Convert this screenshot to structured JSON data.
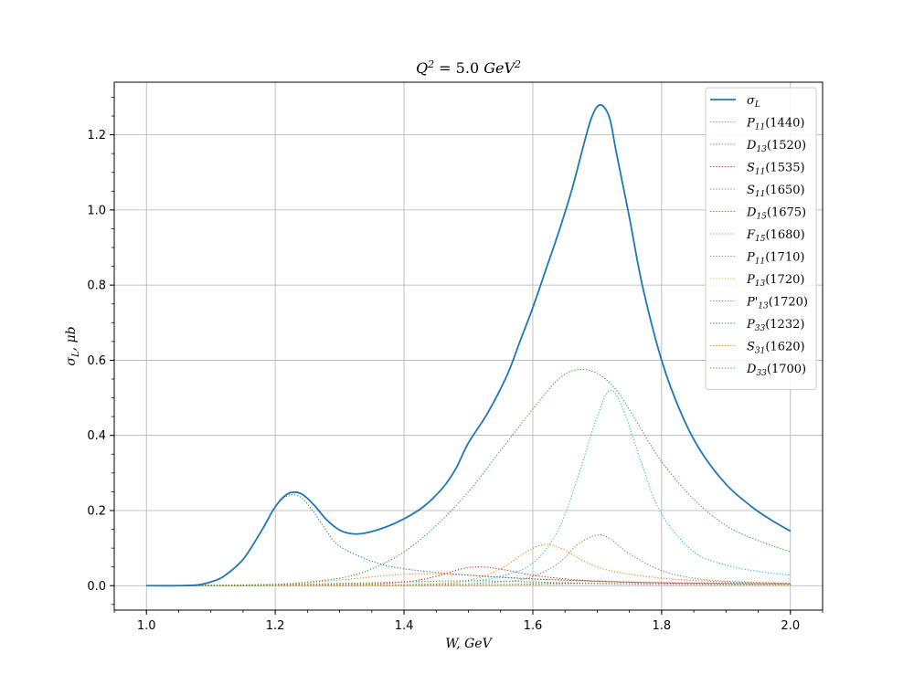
{
  "chart_data": {
    "type": "line",
    "title": "Q^2 = 5.0 GeV^2",
    "title_parts": {
      "base": "Q",
      "sup": "2",
      "mid": " = 5.0 ",
      "unit": "GeV",
      "unit_sup": "2"
    },
    "xlabel": "W, GeV",
    "ylabel": "σL, μb",
    "ylabel_parts": {
      "base": "σ",
      "sub": "L",
      "rest": ", μb"
    },
    "xlim": [
      0.95,
      2.05
    ],
    "ylim": [
      -0.065,
      1.34
    ],
    "x_ticks": [
      1.0,
      1.2,
      1.4,
      1.6,
      1.8,
      2.0
    ],
    "x_tick_labels": [
      "1.0",
      "1.2",
      "1.4",
      "1.6",
      "1.8",
      "2.0"
    ],
    "y_ticks": [
      0.0,
      0.2,
      0.4,
      0.6,
      0.8,
      1.0,
      1.2
    ],
    "y_tick_labels": [
      "0.0",
      "0.2",
      "0.4",
      "0.6",
      "0.8",
      "1.0",
      "1.2"
    ],
    "grid": true,
    "legend_position": "top-right",
    "series": [
      {
        "name": "σL",
        "label_base": "σ",
        "label_sub": "L",
        "label_rest": "",
        "style": "solid",
        "color": "#1f77b4",
        "x": [
          1.0,
          1.05,
          1.08,
          1.1,
          1.12,
          1.15,
          1.18,
          1.2,
          1.22,
          1.24,
          1.26,
          1.28,
          1.3,
          1.32,
          1.34,
          1.37,
          1.4,
          1.43,
          1.46,
          1.48,
          1.5,
          1.53,
          1.56,
          1.58,
          1.6,
          1.62,
          1.64,
          1.66,
          1.68,
          1.69,
          1.7,
          1.71,
          1.72,
          1.73,
          1.75,
          1.77,
          1.8,
          1.83,
          1.86,
          1.9,
          1.94,
          1.97,
          2.0
        ],
        "y": [
          0.0,
          0.0,
          0.002,
          0.01,
          0.025,
          0.07,
          0.15,
          0.21,
          0.245,
          0.245,
          0.215,
          0.175,
          0.148,
          0.138,
          0.14,
          0.155,
          0.178,
          0.21,
          0.26,
          0.31,
          0.38,
          0.46,
          0.56,
          0.65,
          0.74,
          0.84,
          0.94,
          1.05,
          1.18,
          1.24,
          1.275,
          1.275,
          1.24,
          1.15,
          0.98,
          0.8,
          0.6,
          0.46,
          0.36,
          0.27,
          0.21,
          0.175,
          0.145
        ]
      },
      {
        "name": "P11(1440)",
        "label_base": "P",
        "label_sub": "11",
        "label_rest": "(1440)",
        "style": "dotted",
        "color": "#ff7f0e",
        "x": [
          1.0,
          1.2,
          1.3,
          1.38,
          1.44,
          1.5,
          1.6,
          1.7,
          1.8,
          2.0
        ],
        "y": [
          0.0,
          0.004,
          0.015,
          0.028,
          0.032,
          0.028,
          0.018,
          0.012,
          0.008,
          0.004
        ]
      },
      {
        "name": "D13(1520)",
        "label_base": "D",
        "label_sub": "13",
        "label_rest": "(1520)",
        "style": "dotted",
        "color": "#2ca02c",
        "x": [
          1.0,
          1.2,
          1.3,
          1.4,
          1.45,
          1.5,
          1.55,
          1.6,
          1.65,
          1.7,
          1.8,
          2.0
        ],
        "y": [
          0.0,
          0.003,
          0.006,
          0.01,
          0.012,
          0.013,
          0.012,
          0.01,
          0.008,
          0.006,
          0.004,
          0.002
        ]
      },
      {
        "name": "S11(1535)",
        "label_base": "S",
        "label_sub": "11",
        "label_rest": "(1535)",
        "style": "dotted",
        "color": "#d62728",
        "x": [
          1.0,
          1.3,
          1.4,
          1.45,
          1.49,
          1.52,
          1.55,
          1.6,
          1.65,
          1.7,
          1.8,
          2.0
        ],
        "y": [
          0.0,
          0.003,
          0.01,
          0.025,
          0.045,
          0.05,
          0.044,
          0.028,
          0.018,
          0.012,
          0.007,
          0.003
        ]
      },
      {
        "name": "S11(1650)",
        "label_base": "S",
        "label_sub": "11",
        "label_rest": "(1650)",
        "style": "dotted",
        "color": "#9467bd",
        "x": [
          1.0,
          1.4,
          1.55,
          1.62,
          1.65,
          1.68,
          1.75,
          1.85,
          2.0
        ],
        "y": [
          0.0,
          0.001,
          0.003,
          0.006,
          0.008,
          0.007,
          0.005,
          0.003,
          0.002
        ]
      },
      {
        "name": "D15(1675)",
        "label_base": "D",
        "label_sub": "15",
        "label_rest": "(1675)",
        "style": "dotted",
        "color": "#8c564b",
        "x": [
          1.0,
          1.4,
          1.55,
          1.65,
          1.68,
          1.72,
          1.8,
          1.9,
          2.0
        ],
        "y": [
          0.0,
          0.001,
          0.003,
          0.006,
          0.007,
          0.006,
          0.004,
          0.003,
          0.002
        ]
      },
      {
        "name": "F15(1680)",
        "label_base": "F",
        "label_sub": "15",
        "label_rest": "(1680)",
        "style": "dotted",
        "color": "#e377c2",
        "x": [
          1.0,
          1.4,
          1.55,
          1.65,
          1.68,
          1.72,
          1.8,
          1.9,
          2.0
        ],
        "y": [
          0.0,
          0.0,
          0.002,
          0.004,
          0.005,
          0.004,
          0.003,
          0.002,
          0.001
        ]
      },
      {
        "name": "P11(1710)",
        "label_base": "P",
        "label_sub": "11",
        "label_rest": "(1710)",
        "style": "dotted",
        "color": "#7f7f7f",
        "x": [
          1.0,
          1.4,
          1.55,
          1.6,
          1.64,
          1.67,
          1.7,
          1.72,
          1.75,
          1.8,
          1.85,
          1.9,
          2.0
        ],
        "y": [
          0.0,
          0.002,
          0.01,
          0.025,
          0.06,
          0.11,
          0.135,
          0.125,
          0.085,
          0.04,
          0.02,
          0.012,
          0.006
        ]
      },
      {
        "name": "P13(1720)",
        "label_base": "P",
        "label_sub": "13",
        "label_rest": "(1720)",
        "style": "dotted",
        "color": "#bcbd22",
        "x": [
          1.0,
          1.4,
          1.55,
          1.65,
          1.7,
          1.72,
          1.75,
          1.85,
          2.0
        ],
        "y": [
          0.0,
          0.0,
          0.002,
          0.004,
          0.006,
          0.006,
          0.005,
          0.003,
          0.002
        ]
      },
      {
        "name": "P'13(1720)",
        "label_base": "P'",
        "label_sub": "13",
        "label_rest": "(1720)",
        "style": "dotted",
        "color": "#17becf",
        "x": [
          1.0,
          1.4,
          1.5,
          1.55,
          1.6,
          1.64,
          1.67,
          1.7,
          1.72,
          1.74,
          1.77,
          1.8,
          1.85,
          1.9,
          1.95,
          2.0
        ],
        "y": [
          0.0,
          0.003,
          0.012,
          0.025,
          0.06,
          0.15,
          0.29,
          0.45,
          0.52,
          0.47,
          0.32,
          0.19,
          0.09,
          0.055,
          0.038,
          0.028
        ]
      },
      {
        "name": "P33(1232)",
        "label_base": "P",
        "label_sub": "33",
        "label_rest": "(1232)",
        "style": "dotted",
        "color": "#1f77b4",
        "x": [
          1.0,
          1.05,
          1.08,
          1.1,
          1.12,
          1.15,
          1.18,
          1.2,
          1.22,
          1.24,
          1.26,
          1.28,
          1.3,
          1.35,
          1.4,
          1.5,
          1.6,
          1.7,
          1.8,
          2.0
        ],
        "y": [
          0.0,
          0.0,
          0.002,
          0.01,
          0.025,
          0.07,
          0.15,
          0.21,
          0.24,
          0.235,
          0.195,
          0.145,
          0.105,
          0.065,
          0.045,
          0.028,
          0.018,
          0.012,
          0.008,
          0.005
        ]
      },
      {
        "name": "S31(1620)",
        "label_base": "S",
        "label_sub": "31",
        "label_rest": "(1620)",
        "style": "dotted",
        "color": "#ff7f0e",
        "x": [
          1.0,
          1.4,
          1.5,
          1.55,
          1.59,
          1.62,
          1.65,
          1.68,
          1.72,
          1.8,
          1.9,
          2.0
        ],
        "y": [
          0.0,
          0.003,
          0.015,
          0.045,
          0.09,
          0.11,
          0.095,
          0.065,
          0.04,
          0.02,
          0.01,
          0.006
        ]
      },
      {
        "name": "D33(1700)",
        "label_base": "D",
        "label_sub": "33",
        "label_rest": "(1700)",
        "style": "dotted",
        "color": "#2ca02c",
        "x": [
          1.0,
          1.1,
          1.2,
          1.3,
          1.35,
          1.4,
          1.45,
          1.5,
          1.55,
          1.6,
          1.64,
          1.67,
          1.7,
          1.73,
          1.76,
          1.8,
          1.85,
          1.9,
          1.95,
          2.0
        ],
        "y": [
          0.0,
          0.0,
          0.003,
          0.02,
          0.045,
          0.09,
          0.16,
          0.25,
          0.36,
          0.47,
          0.55,
          0.575,
          0.565,
          0.52,
          0.44,
          0.33,
          0.23,
          0.16,
          0.12,
          0.09
        ]
      }
    ]
  }
}
